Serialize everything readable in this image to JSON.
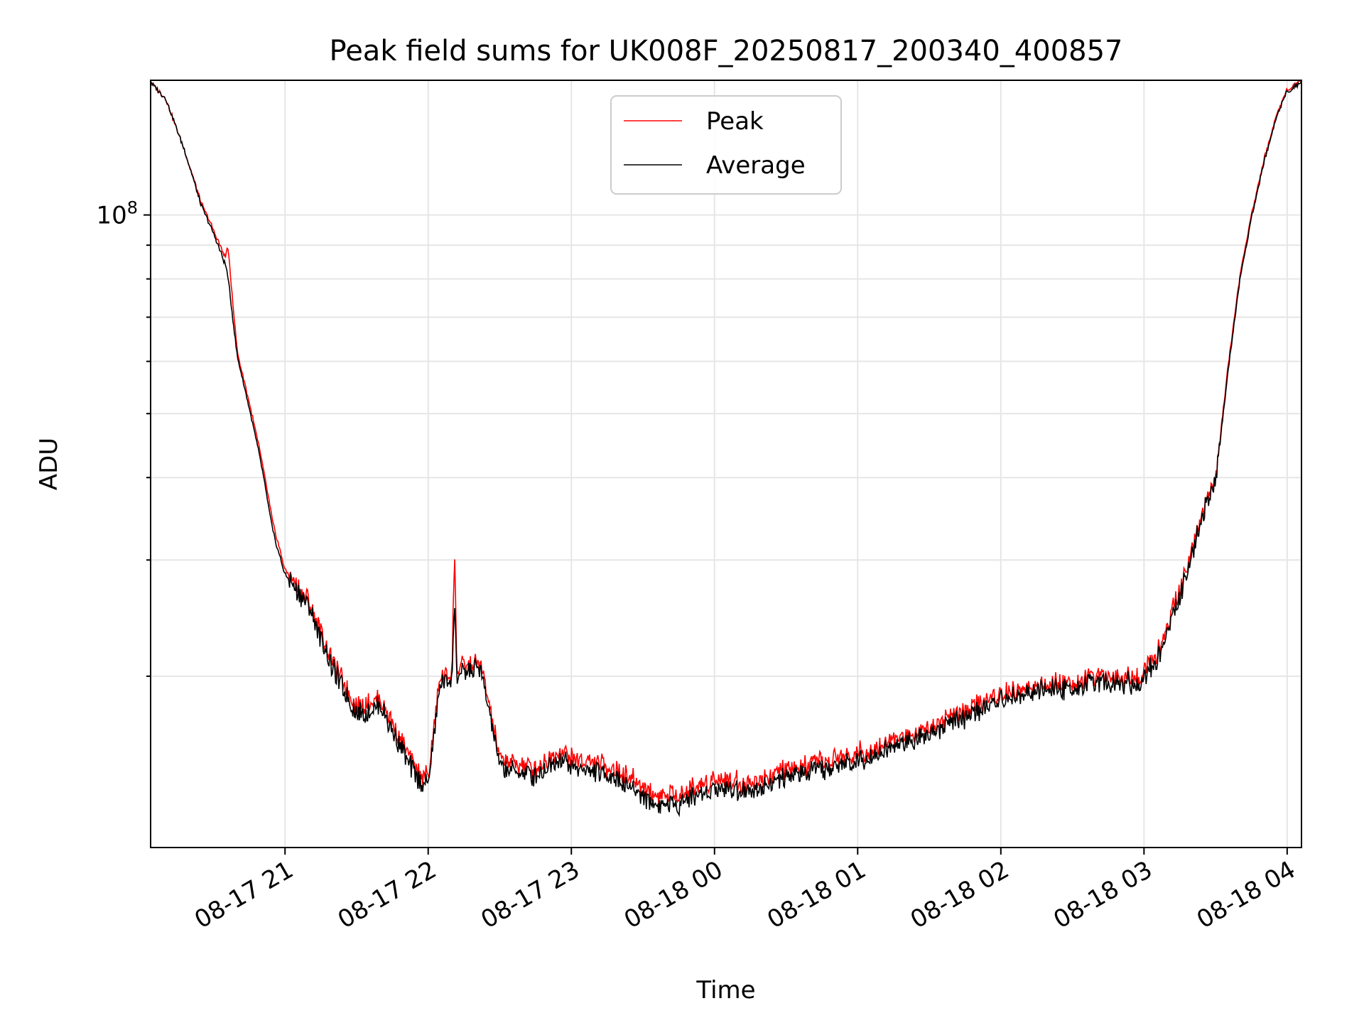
{
  "chart_data": {
    "type": "line",
    "title": "Peak field sums for UK008F_20250817_200340_400857",
    "xlabel": "Time",
    "ylabel": "ADU",
    "yscale": "log",
    "ylim": [
      11000000,
      160000000
    ],
    "xlim": [
      "2025-08-17 20:03:40",
      "2025-08-18 04:06:00"
    ],
    "x_tick_labels": [
      "08-17 21",
      "08-17 22",
      "08-17 23",
      "08-18 00",
      "08-18 01",
      "08-18 02",
      "08-18 03",
      "08-18 04"
    ],
    "x_tick_values": [
      "2025-08-17 21:00",
      "2025-08-17 22:00",
      "2025-08-17 23:00",
      "2025-08-18 00:00",
      "2025-08-18 01:00",
      "2025-08-18 02:00",
      "2025-08-18 03:00",
      "2025-08-18 04:00"
    ],
    "y_tick_labels": [
      {
        "base": "10",
        "exp": "8",
        "value": 100000000
      }
    ],
    "grid": true,
    "legend_position": "upper-center",
    "x": [
      "2025-08-17 20:03:40",
      "2025-08-17 20:10",
      "2025-08-17 20:18",
      "2025-08-17 20:25",
      "2025-08-17 20:30",
      "2025-08-17 20:35",
      "2025-08-17 20:36",
      "2025-08-17 20:40",
      "2025-08-17 20:45",
      "2025-08-17 20:50",
      "2025-08-17 20:55",
      "2025-08-17 21:00",
      "2025-08-17 21:10",
      "2025-08-17 21:20",
      "2025-08-17 21:30",
      "2025-08-17 21:40",
      "2025-08-17 21:50",
      "2025-08-17 21:55",
      "2025-08-17 22:00",
      "2025-08-17 22:05",
      "2025-08-17 22:10",
      "2025-08-17 22:11",
      "2025-08-17 22:12",
      "2025-08-17 22:20",
      "2025-08-17 22:22",
      "2025-08-17 22:30",
      "2025-08-17 22:45",
      "2025-08-17 22:55",
      "2025-08-17 23:00",
      "2025-08-17 23:15",
      "2025-08-17 23:25",
      "2025-08-17 23:35",
      "2025-08-17 23:45",
      "2025-08-18 00:00",
      "2025-08-18 00:15",
      "2025-08-18 00:30",
      "2025-08-18 00:45",
      "2025-08-18 01:00",
      "2025-08-18 01:15",
      "2025-08-18 01:30",
      "2025-08-18 01:45",
      "2025-08-18 02:00",
      "2025-08-18 02:15",
      "2025-08-18 02:30",
      "2025-08-18 02:45",
      "2025-08-18 02:58",
      "2025-08-18 03:05",
      "2025-08-18 03:10",
      "2025-08-18 03:15",
      "2025-08-18 03:20",
      "2025-08-18 03:25",
      "2025-08-18 03:30",
      "2025-08-18 03:35",
      "2025-08-18 03:40",
      "2025-08-18 03:45",
      "2025-08-18 03:50",
      "2025-08-18 03:55",
      "2025-08-18 04:00",
      "2025-08-18 04:06"
    ],
    "series": [
      {
        "name": "Peak",
        "color": "#ff0000",
        "values": [
          159000000,
          150000000,
          125000000,
          104000000,
          95000000,
          86000000,
          90000000,
          62000000,
          52000000,
          43000000,
          34000000,
          29000000,
          26000000,
          21000000,
          18000000,
          18500000,
          15600000,
          14400000,
          14000000,
          20000000,
          20200000,
          31500000,
          20500000,
          20900000,
          20900000,
          15000000,
          14500000,
          15500000,
          15000000,
          14600000,
          14000000,
          13200000,
          13200000,
          14000000,
          13800000,
          14400000,
          14800000,
          15300000,
          16000000,
          16800000,
          17700000,
          18800000,
          19300000,
          19600000,
          20000000,
          19900000,
          21500000,
          24000000,
          27000000,
          31000000,
          36000000,
          40000000,
          58000000,
          80000000,
          100000000,
          120000000,
          140000000,
          155000000,
          160000000
        ]
      },
      {
        "name": "Average",
        "color": "#000000",
        "values": [
          159000000,
          150000000,
          125000000,
          103000000,
          94000000,
          84000000,
          81000000,
          61000000,
          51000000,
          42000000,
          33000000,
          28500000,
          25500000,
          20500000,
          17500000,
          18000000,
          15200000,
          14000000,
          13700000,
          19500000,
          19800000,
          26000000,
          20000000,
          20500000,
          20500000,
          14600000,
          14100000,
          15100000,
          14600000,
          14200000,
          13600000,
          12800000,
          12800000,
          13600000,
          13400000,
          14000000,
          14400000,
          14900000,
          15600000,
          16400000,
          17300000,
          18400000,
          18900000,
          19200000,
          19600000,
          19500000,
          21000000,
          23500000,
          26500000,
          30500000,
          35500000,
          39500000,
          57000000,
          79000000,
          99000000,
          119000000,
          139000000,
          154000000,
          159000000
        ]
      }
    ]
  }
}
